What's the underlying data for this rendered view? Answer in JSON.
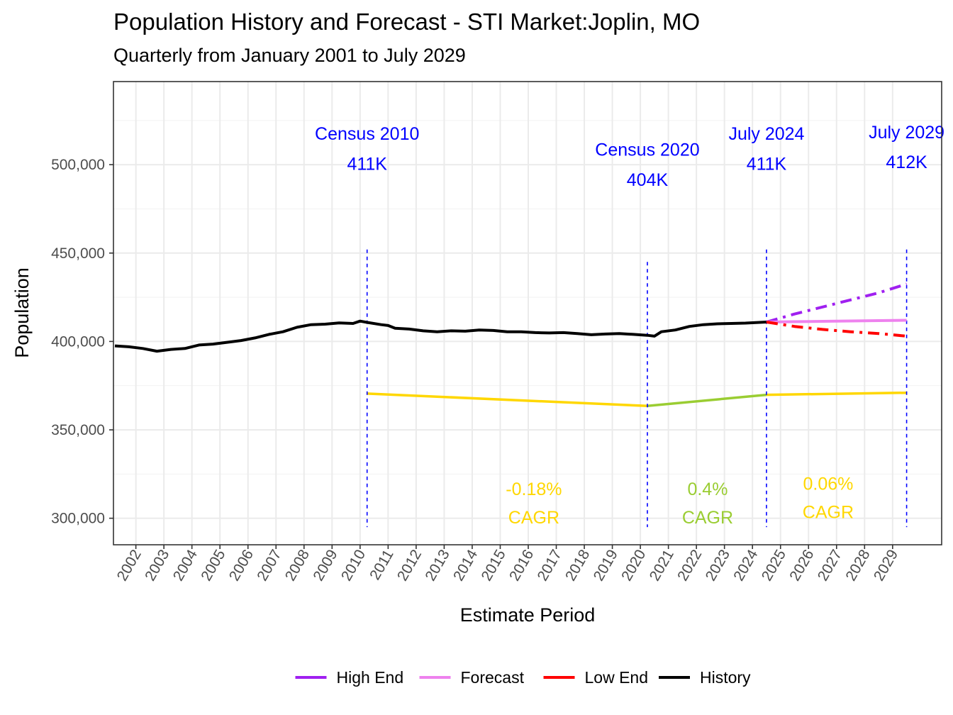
{
  "chart_data": {
    "type": "line",
    "title": "Population History and Forecast - STI Market:Joplin, MO",
    "subtitle": "Quarterly from January 2001 to July 2029",
    "xlabel": "Estimate Period",
    "ylabel": "Population",
    "xlim": [
      2001.2,
      2030.75
    ],
    "ylim": [
      285000,
      547000
    ],
    "x_ticks": [
      2002,
      2003,
      2004,
      2005,
      2006,
      2007,
      2008,
      2009,
      2010,
      2011,
      2012,
      2013,
      2014,
      2015,
      2016,
      2017,
      2018,
      2019,
      2020,
      2021,
      2022,
      2023,
      2024,
      2025,
      2026,
      2027,
      2028,
      2029
    ],
    "y_ticks": [
      300000,
      350000,
      400000,
      450000,
      500000
    ],
    "y_tick_labels": [
      "300,000",
      "350,000",
      "400,000",
      "450,000",
      "500,000"
    ],
    "grid": true,
    "legend_position": "bottom",
    "series": [
      {
        "name": "History",
        "color": "#000000",
        "style": "solid",
        "x": [
          2001.25,
          2001.75,
          2002.25,
          2002.75,
          2003.25,
          2003.75,
          2004.25,
          2004.75,
          2005.25,
          2005.75,
          2006.25,
          2006.75,
          2007.25,
          2007.75,
          2008.25,
          2008.75,
          2009.25,
          2009.75,
          2010.0,
          2010.25,
          2010.75,
          2011.0,
          2011.25,
          2011.75,
          2012.25,
          2012.75,
          2013.25,
          2013.75,
          2014.25,
          2014.75,
          2015.25,
          2015.75,
          2016.25,
          2016.75,
          2017.25,
          2017.75,
          2018.25,
          2018.75,
          2019.25,
          2019.75,
          2020.25,
          2020.5,
          2020.75,
          2021.25,
          2021.75,
          2022.25,
          2022.75,
          2023.25,
          2023.75,
          2024.25,
          2024.5
        ],
        "y": [
          397500,
          397000,
          396000,
          394500,
          395500,
          396000,
          398000,
          398500,
          399500,
          400500,
          402000,
          404000,
          405500,
          408000,
          409500,
          409800,
          410500,
          410200,
          411500,
          410800,
          409500,
          409000,
          407500,
          407000,
          406000,
          405500,
          406000,
          405800,
          406500,
          406200,
          405500,
          405500,
          405000,
          404800,
          405000,
          404500,
          403800,
          404200,
          404500,
          404000,
          403500,
          403000,
          405500,
          406500,
          408500,
          409500,
          410000,
          410200,
          410400,
          410800,
          411000
        ]
      },
      {
        "name": "High End",
        "color": "#a020f0",
        "style": "dashdot",
        "x": [
          2024.5,
          2025.5,
          2026.5,
          2027.5,
          2028.5,
          2029.5
        ],
        "y": [
          411000,
          415500,
          419500,
          423500,
          427500,
          432500
        ]
      },
      {
        "name": "Forecast",
        "color": "#ee82ee",
        "style": "solid",
        "x": [
          2024.5,
          2025.5,
          2026.5,
          2027.5,
          2028.5,
          2029.5
        ],
        "y": [
          411000,
          411200,
          411400,
          411600,
          411800,
          412000
        ]
      },
      {
        "name": "Low End",
        "color": "#ff0000",
        "style": "dashdot",
        "x": [
          2024.5,
          2025.5,
          2026.5,
          2027.5,
          2028.5,
          2029.5
        ],
        "y": [
          411000,
          408500,
          406800,
          405500,
          404500,
          403000
        ]
      }
    ],
    "cagr_lines": [
      {
        "color": "#ffd700",
        "x": [
          2010.25,
          2020.25
        ],
        "y": [
          370500,
          363500
        ]
      },
      {
        "color": "#9acd32",
        "x": [
          2020.25,
          2024.5
        ],
        "y": [
          363500,
          369800
        ]
      },
      {
        "color": "#ffd700",
        "x": [
          2024.5,
          2029.5
        ],
        "y": [
          369800,
          371000
        ]
      }
    ],
    "vlines": [
      {
        "x": 2010.25,
        "y_range": [
          295000,
          452000
        ]
      },
      {
        "x": 2020.25,
        "y_range": [
          295000,
          445000
        ]
      },
      {
        "x": 2024.5,
        "y_range": [
          295000,
          452000
        ]
      },
      {
        "x": 2029.5,
        "y_range": [
          295000,
          452000
        ]
      }
    ],
    "annotations": [
      {
        "line1": "Census 2010",
        "line2": "411K",
        "x": 2010.25,
        "y1": 514000,
        "y2": 497000,
        "color": "#0000ff"
      },
      {
        "line1": "Census 2020",
        "line2": "404K",
        "x": 2020.25,
        "y1": 505000,
        "y2": 488000,
        "color": "#0000ff"
      },
      {
        "line1": "July 2024",
        "line2": "411K",
        "x": 2024.5,
        "y1": 514000,
        "y2": 497000,
        "color": "#0000ff"
      },
      {
        "line1": "July 2029",
        "line2": "412K",
        "x": 2029.5,
        "y1": 515000,
        "y2": 498000,
        "color": "#0000ff"
      }
    ],
    "cagr_labels": [
      {
        "line1": "-0.18%",
        "line2": "CAGR",
        "x": 2016.2,
        "y1": 313000,
        "y2": 297000,
        "color": "#ffd700"
      },
      {
        "line1": "0.4%",
        "line2": "CAGR",
        "x": 2022.4,
        "y1": 313000,
        "y2": 297000,
        "color": "#9acd32"
      },
      {
        "line1": "0.06%",
        "line2": "CAGR",
        "x": 2026.7,
        "y1": 316000,
        "y2": 300000,
        "color": "#ffd700"
      }
    ],
    "legend": [
      {
        "label": "High End",
        "color": "#a020f0"
      },
      {
        "label": "Forecast",
        "color": "#ee82ee"
      },
      {
        "label": "Low End",
        "color": "#ff0000"
      },
      {
        "label": "History",
        "color": "#000000"
      }
    ]
  }
}
